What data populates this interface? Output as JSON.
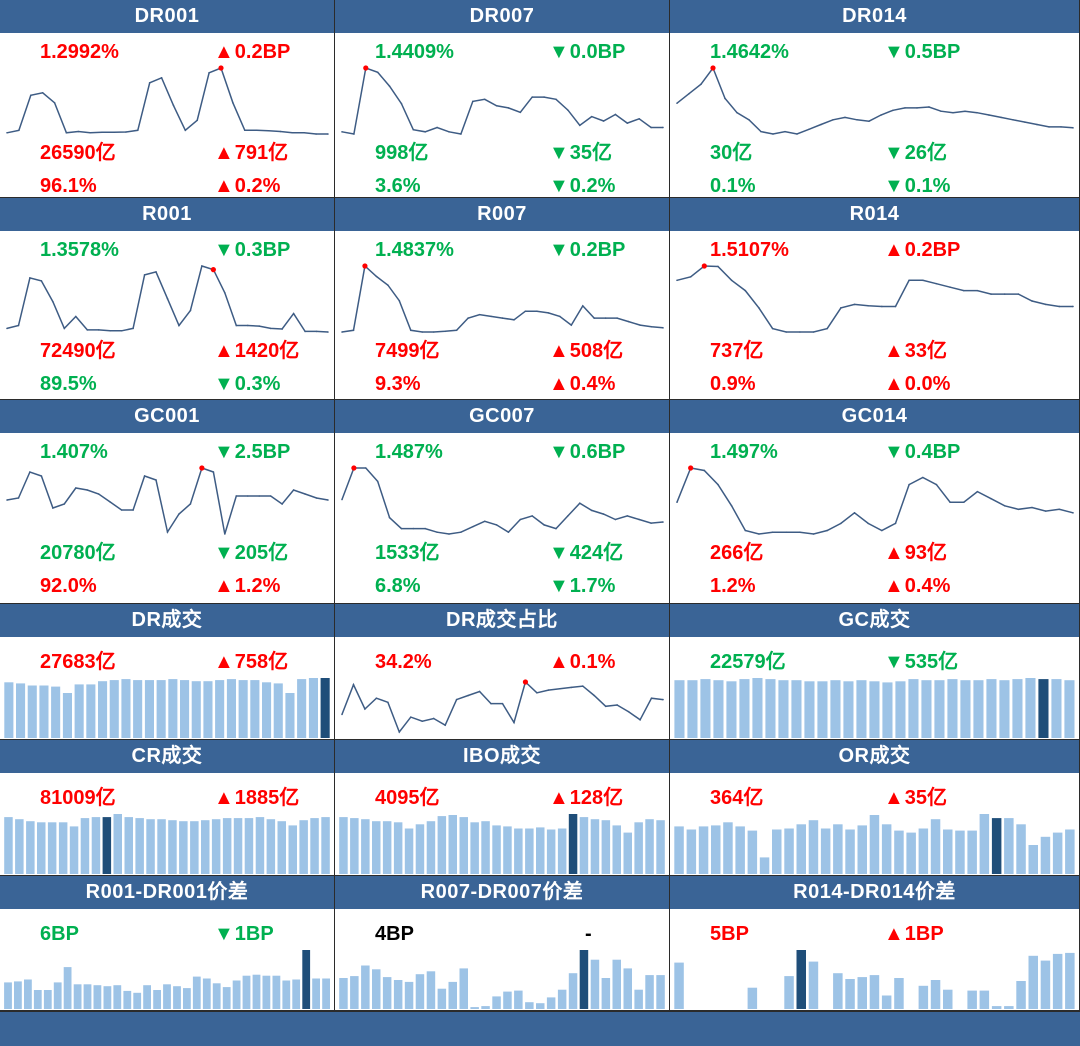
{
  "colors": {
    "header": "#3a6496",
    "up": "#ff0000",
    "down": "#00b050",
    "neutral": "#000000",
    "bar": "#9dc3e6",
    "bar_highlight": "#1f4e79",
    "line": "#3e5c84",
    "marker": "#ff0000"
  },
  "panels": [
    {
      "title": "DR001",
      "rows": [
        {
          "left": {
            "text": "1.2992%",
            "color": "up"
          },
          "right": {
            "text": "0.2BP",
            "color": "up",
            "arrow": "up"
          }
        },
        {
          "left": {
            "text": "26590亿",
            "color": "up"
          },
          "right": {
            "text": "791亿",
            "color": "up",
            "arrow": "up"
          }
        },
        {
          "left": {
            "text": "96.1%",
            "color": "up"
          },
          "right": {
            "text": "0.2%",
            "color": "up",
            "arrow": "up"
          }
        }
      ],
      "chart_data": {
        "type": "line",
        "values": [
          1.14,
          1.15,
          1.29,
          1.3,
          1.26,
          1.14,
          1.145,
          1.14,
          1.142,
          1.142,
          1.143,
          1.15,
          1.34,
          1.36,
          1.25,
          1.15,
          1.19,
          1.38,
          1.3992,
          1.26,
          1.15,
          1.15,
          1.148,
          1.145,
          1.14,
          1.14,
          1.135,
          1.135
        ],
        "highlight_index": 18
      }
    },
    {
      "title": "DR007",
      "rows": [
        {
          "left": {
            "text": "1.4409%",
            "color": "down"
          },
          "right": {
            "text": "0.0BP",
            "color": "down",
            "arrow": "down"
          }
        },
        {
          "left": {
            "text": "998亿",
            "color": "down"
          },
          "right": {
            "text": "35亿",
            "color": "down",
            "arrow": "down"
          }
        },
        {
          "left": {
            "text": "3.6%",
            "color": "down"
          },
          "right": {
            "text": "0.2%",
            "color": "down",
            "arrow": "down"
          }
        }
      ],
      "chart_data": {
        "type": "line",
        "values": [
          1.445,
          1.44,
          1.592,
          1.582,
          1.55,
          1.51,
          1.45,
          1.445,
          1.455,
          1.445,
          1.44,
          1.515,
          1.52,
          1.505,
          1.5,
          1.49,
          1.525,
          1.525,
          1.52,
          1.495,
          1.46,
          1.48,
          1.47,
          1.485,
          1.465,
          1.475,
          1.455,
          1.455
        ],
        "highlight_index": 2
      }
    },
    {
      "title": "DR014",
      "rows": [
        {
          "left": {
            "text": "1.4642%",
            "color": "down"
          },
          "right": {
            "text": "0.5BP",
            "color": "down",
            "arrow": "down"
          }
        },
        {
          "left": {
            "text": "30亿",
            "color": "down"
          },
          "right": {
            "text": "26亿",
            "color": "down",
            "arrow": "down"
          }
        },
        {
          "left": {
            "text": "0.1%",
            "color": "down"
          },
          "right": {
            "text": "0.1%",
            "color": "down",
            "arrow": "down"
          }
        }
      ],
      "chart_data": {
        "type": "line",
        "values": [
          1.39,
          1.41,
          1.43,
          1.4642,
          1.4,
          1.37,
          1.355,
          1.33,
          1.325,
          1.33,
          1.325,
          1.335,
          1.345,
          1.355,
          1.36,
          1.355,
          1.352,
          1.365,
          1.375,
          1.38,
          1.38,
          1.382,
          1.373,
          1.37,
          1.373,
          1.37,
          1.365,
          1.36,
          1.355,
          1.35,
          1.345,
          1.34,
          1.34,
          1.338
        ],
        "highlight_index": 3
      }
    },
    {
      "title": "R001",
      "rows": [
        {
          "left": {
            "text": "1.3578%",
            "color": "down"
          },
          "right": {
            "text": "0.3BP",
            "color": "down",
            "arrow": "down"
          }
        },
        {
          "left": {
            "text": "72490亿",
            "color": "up"
          },
          "right": {
            "text": "1420亿",
            "color": "up",
            "arrow": "up"
          }
        },
        {
          "left": {
            "text": "89.5%",
            "color": "down"
          },
          "right": {
            "text": "0.3%",
            "color": "down",
            "arrow": "down"
          }
        }
      ],
      "chart_data": {
        "type": "line",
        "values": [
          1.16,
          1.17,
          1.33,
          1.32,
          1.25,
          1.16,
          1.2,
          1.155,
          1.155,
          1.152,
          1.152,
          1.16,
          1.34,
          1.35,
          1.26,
          1.17,
          1.22,
          1.37,
          1.3578,
          1.28,
          1.17,
          1.17,
          1.168,
          1.16,
          1.158,
          1.21,
          1.15,
          1.15,
          1.148
        ],
        "highlight_index": 18
      }
    },
    {
      "title": "R007",
      "rows": [
        {
          "left": {
            "text": "1.4837%",
            "color": "down"
          },
          "right": {
            "text": "0.2BP",
            "color": "down",
            "arrow": "down"
          }
        },
        {
          "left": {
            "text": "7499亿",
            "color": "up"
          },
          "right": {
            "text": "508亿",
            "color": "up",
            "arrow": "up"
          }
        },
        {
          "left": {
            "text": "9.3%",
            "color": "up"
          },
          "right": {
            "text": "0.4%",
            "color": "up",
            "arrow": "up"
          }
        }
      ],
      "chart_data": {
        "type": "line",
        "values": [
          1.45,
          1.455,
          1.64,
          1.61,
          1.585,
          1.54,
          1.455,
          1.45,
          1.45,
          1.452,
          1.455,
          1.49,
          1.5,
          1.495,
          1.49,
          1.485,
          1.51,
          1.51,
          1.505,
          1.495,
          1.47,
          1.525,
          1.49,
          1.49,
          1.49,
          1.48,
          1.47,
          1.465,
          1.462
        ],
        "highlight_index": 2
      }
    },
    {
      "title": "R014",
      "rows": [
        {
          "left": {
            "text": "1.5107%",
            "color": "up"
          },
          "right": {
            "text": "0.2BP",
            "color": "up",
            "arrow": "up"
          }
        },
        {
          "left": {
            "text": "737亿",
            "color": "up"
          },
          "right": {
            "text": "33亿",
            "color": "up",
            "arrow": "up"
          }
        },
        {
          "left": {
            "text": "0.9%",
            "color": "up"
          },
          "right": {
            "text": "0.0%",
            "color": "up",
            "arrow": "up"
          }
        }
      ],
      "chart_data": {
        "type": "line",
        "values": [
          1.49,
          1.495,
          1.5107,
          1.51,
          1.49,
          1.475,
          1.45,
          1.42,
          1.415,
          1.415,
          1.415,
          1.42,
          1.45,
          1.455,
          1.453,
          1.452,
          1.452,
          1.49,
          1.49,
          1.485,
          1.48,
          1.475,
          1.475,
          1.47,
          1.47,
          1.47,
          1.46,
          1.455,
          1.452,
          1.452
        ],
        "highlight_index": 2
      }
    },
    {
      "title": "GC001",
      "rows": [
        {
          "left": {
            "text": "1.407%",
            "color": "down"
          },
          "right": {
            "text": "2.5BP",
            "color": "down",
            "arrow": "down"
          }
        },
        {
          "left": {
            "text": "20780亿",
            "color": "down"
          },
          "right": {
            "text": "205亿",
            "color": "down",
            "arrow": "down"
          }
        },
        {
          "left": {
            "text": "92.0%",
            "color": "up"
          },
          "right": {
            "text": "1.2%",
            "color": "up",
            "arrow": "up"
          }
        }
      ],
      "chart_data": {
        "type": "line",
        "values": [
          1.27,
          1.28,
          1.41,
          1.39,
          1.23,
          1.25,
          1.33,
          1.32,
          1.3,
          1.26,
          1.22,
          1.22,
          1.39,
          1.37,
          1.11,
          1.2,
          1.25,
          1.43,
          1.41,
          1.1,
          1.29,
          1.29,
          1.29,
          1.29,
          1.25,
          1.32,
          1.3,
          1.28,
          1.27
        ],
        "highlight_index": 17
      }
    },
    {
      "title": "GC007",
      "rows": [
        {
          "left": {
            "text": "1.487%",
            "color": "down"
          },
          "right": {
            "text": "0.6BP",
            "color": "down",
            "arrow": "down"
          }
        },
        {
          "left": {
            "text": "1533亿",
            "color": "down"
          },
          "right": {
            "text": "424亿",
            "color": "down",
            "arrow": "down"
          }
        },
        {
          "left": {
            "text": "6.8%",
            "color": "down"
          },
          "right": {
            "text": "1.7%",
            "color": "down",
            "arrow": "down"
          }
        }
      ],
      "chart_data": {
        "type": "line",
        "values": [
          1.4,
          1.487,
          1.487,
          1.45,
          1.35,
          1.32,
          1.32,
          1.32,
          1.31,
          1.305,
          1.31,
          1.325,
          1.34,
          1.33,
          1.31,
          1.345,
          1.355,
          1.33,
          1.32,
          1.355,
          1.39,
          1.37,
          1.36,
          1.345,
          1.355,
          1.345,
          1.335,
          1.338
        ],
        "highlight_index": 1
      }
    },
    {
      "title": "GC014",
      "rows": [
        {
          "left": {
            "text": "1.497%",
            "color": "down"
          },
          "right": {
            "text": "0.4BP",
            "color": "down",
            "arrow": "down"
          }
        },
        {
          "left": {
            "text": "266亿",
            "color": "up"
          },
          "right": {
            "text": "93亿",
            "color": "up",
            "arrow": "up"
          }
        },
        {
          "left": {
            "text": "1.2%",
            "color": "up"
          },
          "right": {
            "text": "0.4%",
            "color": "up",
            "arrow": "up"
          }
        }
      ],
      "chart_data": {
        "type": "line",
        "values": [
          1.4,
          1.497,
          1.49,
          1.45,
          1.39,
          1.32,
          1.31,
          1.315,
          1.315,
          1.315,
          1.31,
          1.32,
          1.34,
          1.37,
          1.34,
          1.32,
          1.34,
          1.45,
          1.47,
          1.45,
          1.4,
          1.4,
          1.43,
          1.41,
          1.39,
          1.38,
          1.385,
          1.375,
          1.38,
          1.37
        ],
        "highlight_index": 1
      }
    },
    {
      "title": "DR成交",
      "rows": [
        {
          "left": {
            "text": "27683亿",
            "color": "up"
          },
          "right": {
            "text": "758亿",
            "color": "up",
            "arrow": "up"
          }
        }
      ],
      "chart_data": {
        "type": "bar",
        "values": [
          52,
          51,
          49,
          49,
          48,
          42,
          50,
          50,
          53,
          54,
          55,
          54,
          54,
          54,
          55,
          54,
          53,
          53,
          54,
          55,
          54,
          54,
          52,
          51,
          42,
          55,
          56,
          56
        ],
        "highlight_index": 27
      }
    },
    {
      "title": "DR成交占比",
      "rows": [
        {
          "left": {
            "text": "34.2%",
            "color": "up"
          },
          "right": {
            "text": "0.1%",
            "color": "up",
            "arrow": "up"
          }
        }
      ],
      "chart_data": {
        "type": "line",
        "values": [
          31.8,
          34.0,
          32.2,
          33.0,
          32.7,
          30.5,
          31.6,
          31.3,
          31.5,
          31.0,
          32.9,
          33.2,
          33.5,
          32.6,
          32.6,
          31.2,
          34.2,
          33.4,
          33.6,
          33.7,
          33.8,
          33.9,
          33.2,
          32.4,
          32.5,
          32.0,
          31.4,
          33.0,
          32.9
        ],
        "highlight_index": 16
      }
    },
    {
      "title": "GC成交",
      "rows": [
        {
          "left": {
            "text": "22579亿",
            "color": "down"
          },
          "right": {
            "text": "535亿",
            "color": "down",
            "arrow": "down"
          }
        }
      ],
      "chart_data": {
        "type": "bar",
        "values": [
          52,
          52,
          53,
          52,
          51,
          53,
          54,
          53,
          52,
          52,
          51,
          51,
          52,
          51,
          52,
          51,
          50,
          51,
          53,
          52,
          52,
          53,
          52,
          52,
          53,
          52,
          53,
          54,
          53,
          53,
          52
        ],
        "highlight_index": 28
      }
    },
    {
      "title": "CR成交",
      "rows": [
        {
          "left": {
            "text": "81009亿",
            "color": "up"
          },
          "right": {
            "text": "1885亿",
            "color": "up",
            "arrow": "up"
          }
        }
      ],
      "chart_data": {
        "type": "bar",
        "values": [
          55,
          53,
          51,
          50,
          50,
          50,
          46,
          54,
          55,
          55,
          58,
          55,
          54,
          53,
          53,
          52,
          51,
          51,
          52,
          53,
          54,
          54,
          54,
          55,
          53,
          51,
          47,
          52,
          54,
          55
        ],
        "highlight_index": 9
      }
    },
    {
      "title": "IBO成交",
      "rows": [
        {
          "left": {
            "text": "4095亿",
            "color": "up"
          },
          "right": {
            "text": "128亿",
            "color": "up",
            "arrow": "up"
          }
        }
      ],
      "chart_data": {
        "type": "bar",
        "values": [
          55,
          54,
          53,
          51,
          51,
          50,
          44,
          48,
          51,
          56,
          57,
          55,
          50,
          51,
          47,
          46,
          44,
          44,
          45,
          43,
          44,
          58,
          55,
          53,
          52,
          47,
          40,
          50,
          53,
          52
        ],
        "highlight_index": 21
      }
    },
    {
      "title": "OR成交",
      "rows": [
        {
          "left": {
            "text": "364亿",
            "color": "up"
          },
          "right": {
            "text": "35亿",
            "color": "up",
            "arrow": "up"
          }
        }
      ],
      "chart_data": {
        "type": "bar",
        "values": [
          46,
          43,
          46,
          47,
          50,
          46,
          42,
          16,
          43,
          44,
          48,
          52,
          44,
          48,
          43,
          47,
          57,
          48,
          42,
          40,
          44,
          53,
          43,
          42,
          42,
          58,
          54,
          54,
          48,
          28,
          36,
          40,
          43
        ],
        "highlight_index": 26
      }
    },
    {
      "title": "R001-DR001价差",
      "rows": [
        {
          "left": {
            "text": "6BP",
            "color": "down"
          },
          "right": {
            "text": "1BP",
            "color": "down",
            "arrow": "down"
          }
        }
      ],
      "chart_data": {
        "type": "bar",
        "values": [
          28,
          29,
          31,
          20,
          20,
          28,
          44,
          26,
          26,
          25,
          24,
          25,
          19,
          17,
          25,
          20,
          26,
          24,
          22,
          34,
          32,
          27,
          23,
          30,
          35,
          36,
          35,
          35,
          30,
          31,
          62,
          32,
          32
        ],
        "highlight_index": 30
      }
    },
    {
      "title": "R007-DR007价差",
      "rows": [
        {
          "left": {
            "text": "4BP",
            "color": "neutral"
          },
          "right": {
            "text": "-",
            "color": "neutral",
            "arrow": "none"
          }
        }
      ],
      "chart_data": {
        "type": "bar",
        "values": [
          32,
          34,
          45,
          41,
          33,
          30,
          28,
          36,
          39,
          21,
          28,
          42,
          2,
          3,
          13,
          18,
          19,
          7,
          6,
          12,
          20,
          37,
          61,
          51,
          32,
          51,
          42,
          20,
          35,
          35
        ],
        "highlight_index": 22
      }
    },
    {
      "title": "R014-DR014价差",
      "rows": [
        {
          "left": {
            "text": "5BP",
            "color": "up"
          },
          "right": {
            "text": "1BP",
            "color": "up",
            "arrow": "up"
          }
        }
      ],
      "chart_data": {
        "type": "bar",
        "values": [
          48,
          0,
          0,
          0,
          0,
          0,
          22,
          0,
          0,
          34,
          61,
          49,
          0,
          37,
          31,
          33,
          35,
          14,
          32,
          0,
          24,
          30,
          20,
          0,
          19,
          19,
          3,
          3,
          29,
          55,
          50,
          57,
          58
        ],
        "highlight_index": 10
      }
    }
  ]
}
